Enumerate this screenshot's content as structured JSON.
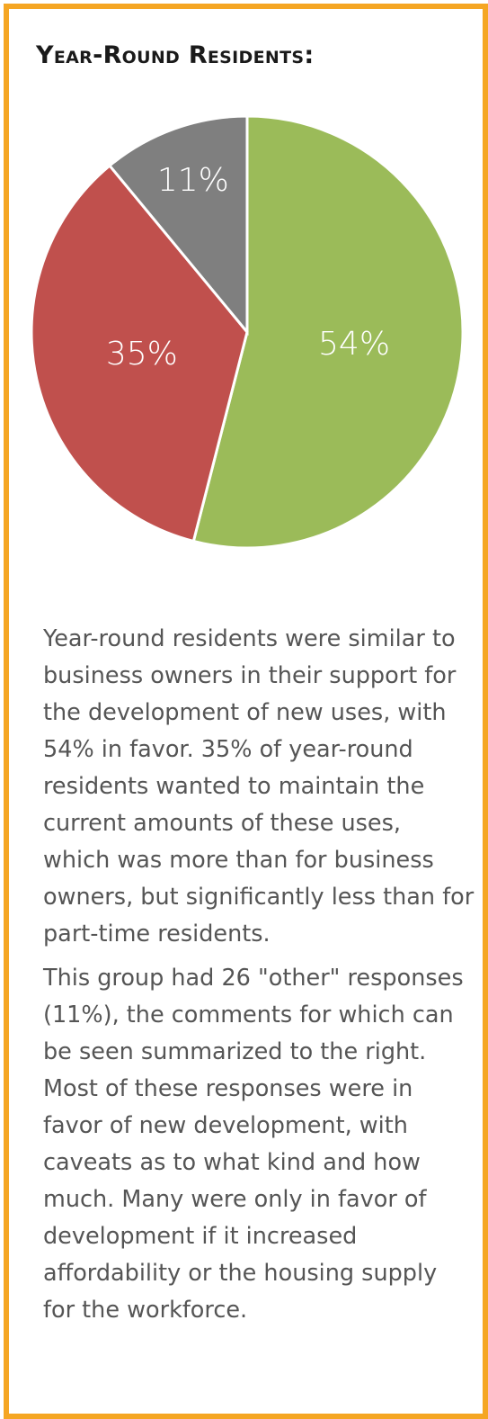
{
  "chart_data": {
    "type": "pie",
    "title": "Year-Round Residents:",
    "values": [
      54,
      35,
      11
    ],
    "value_labels": [
      "54%",
      "35%",
      "11%"
    ],
    "colors": [
      "#9bbb59",
      "#c0504d",
      "#7f7f7f"
    ]
  },
  "paragraphs": [
    "Year-round residents were similar to business owners in their support for the development of new uses, with 54% in favor. 35% of year-round residents wanted to maintain the current amounts of these uses, which was more than for business owners, but significantly less than for part-time residents.",
    "This group had 26 \"other\" responses (11%), the comments for which can be seen summarized to the right. Most of these responses were in favor of new development, with caveats as to what kind and how much. Many were only in favor of development if it increased affordability or the housing supply for the workforce."
  ]
}
